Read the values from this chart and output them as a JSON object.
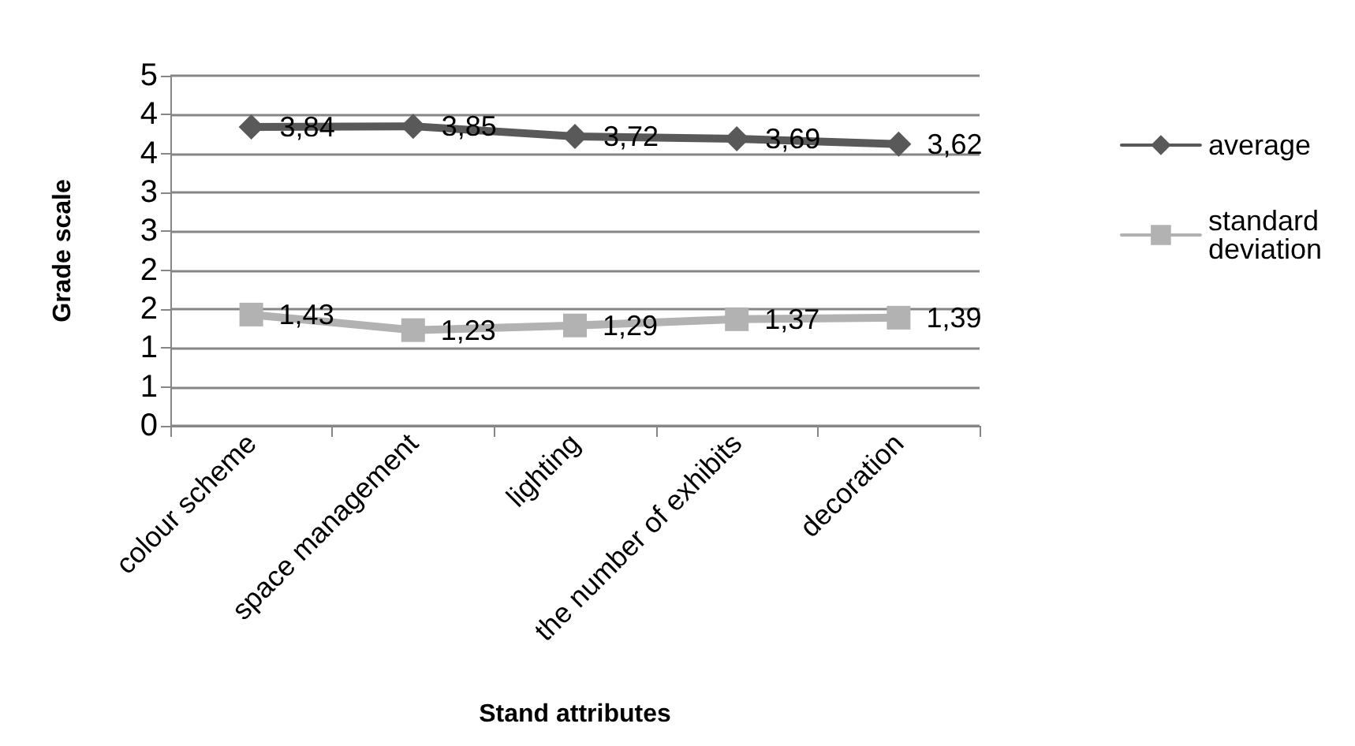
{
  "chart_data": {
    "type": "line",
    "xlabel": "Stand attributes",
    "ylabel": "Grade scale",
    "categories": [
      "colour scheme",
      "space management",
      "lighting",
      "the number of exhibits",
      "decoration"
    ],
    "series": [
      {
        "name": "average",
        "color": "#595959",
        "marker": "diamond",
        "values": [
          3.84,
          3.85,
          3.72,
          3.69,
          3.62
        ],
        "value_labels": [
          "3,84",
          "3,85",
          "3,72",
          "3,69",
          "3,62"
        ]
      },
      {
        "name": "standard deviation",
        "color": "#b2b2b2",
        "marker": "square",
        "values": [
          1.43,
          1.23,
          1.29,
          1.37,
          1.39
        ],
        "value_labels": [
          "1,43",
          "1,23",
          "1,29",
          "1,37",
          "1,39"
        ]
      }
    ],
    "ylim": [
      0,
      4.5
    ],
    "yticks": [
      0,
      {
        "value": 0.5,
        "label": "1"
      },
      1,
      {
        "value": 1.5,
        "label": "2"
      },
      2,
      {
        "value": 2.5,
        "label": "3"
      },
      3,
      {
        "value": 3.5,
        "label": "4"
      },
      4,
      {
        "value": 4.5,
        "label": "5"
      }
    ],
    "grid": "y",
    "legend": "right"
  }
}
